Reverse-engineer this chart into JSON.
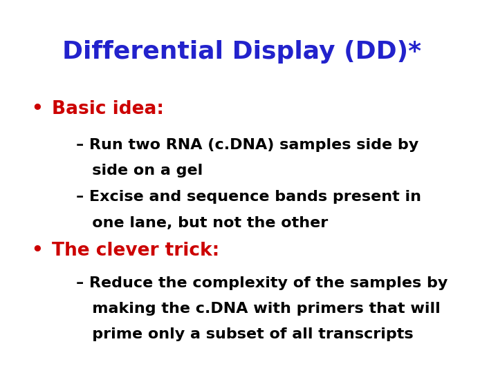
{
  "title": "Differential Display (DD)*",
  "title_color": "#2222CC",
  "title_fontsize": 26,
  "title_weight": "bold",
  "background_color": "#ffffff",
  "bullet1_text": "Basic idea:",
  "bullet1_color": "#CC0000",
  "bullet1_fontsize": 19,
  "bullet1_weight": "bold",
  "sub1a_line1": "– Run two RNA (c.DNA) samples side by",
  "sub1a_line2": "   side on a gel",
  "sub1b_line1": "– Excise and sequence bands present in",
  "sub1b_line2": "   one lane, but not the other",
  "sub_color": "#000000",
  "sub_fontsize": 16,
  "sub_weight": "bold",
  "bullet2_text": "The clever trick:",
  "bullet2_color": "#CC0000",
  "bullet2_fontsize": 19,
  "bullet2_weight": "bold",
  "sub2_line1": "– Reduce the complexity of the samples by",
  "sub2_line2": "   making the c.DNA with primers that will",
  "sub2_line3": "   prime only a subset of all transcripts",
  "bullet_dot_color": "#CC0000"
}
